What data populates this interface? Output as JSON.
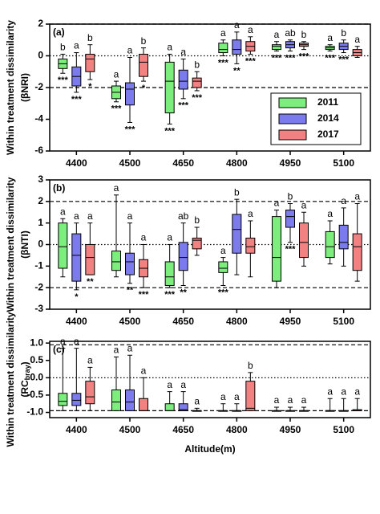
{
  "chart_data": [
    {
      "type": "box",
      "panel_label": "(a)",
      "y_label": "Within treatment dissimilarity",
      "y_sublabel": "(βNRI)",
      "categories": [
        "4400",
        "4500",
        "4650",
        "4800",
        "4950",
        "5100"
      ],
      "ylim": [
        -6,
        2
      ],
      "yticks": [
        -6,
        -4,
        -2,
        0,
        2
      ],
      "hlines": [
        {
          "value": 2,
          "style": "dashed"
        },
        {
          "value": -2,
          "style": "dashed"
        },
        {
          "value": 0,
          "style": "dotted"
        }
      ],
      "legend": "lower right",
      "series": [
        {
          "name": "2011",
          "color": "#7ded7d",
          "values": [
            [
              -1.1,
              -0.8,
              -0.5,
              -0.2,
              0.1
            ],
            [
              -2.9,
              -2.7,
              -2.3,
              -1.9,
              -1.6
            ],
            [
              -4.3,
              -3.6,
              -1.6,
              -0.4,
              0.1
            ],
            [
              0.0,
              0.2,
              0.4,
              0.8,
              1.0
            ],
            [
              0.3,
              0.4,
              0.6,
              0.7,
              0.9
            ],
            [
              0.3,
              0.4,
              0.5,
              0.6,
              0.7
            ]
          ],
          "letters": [
            "b",
            "a",
            "a",
            "a",
            "a",
            "a"
          ],
          "stars": [
            "***",
            "***",
            "***",
            "***",
            "***",
            "***"
          ]
        },
        {
          "name": "2014",
          "color": "#7b7bee",
          "values": [
            [
              -2.3,
              -1.9,
              -1.3,
              -0.7,
              0.2
            ],
            [
              -4.2,
              -3.1,
              -2.1,
              -1.7,
              -0.1
            ],
            [
              -2.7,
              -2.1,
              -1.6,
              -0.9,
              -0.2
            ],
            [
              -0.5,
              0.1,
              0.4,
              1.0,
              1.5
            ],
            [
              0.3,
              0.5,
              0.7,
              0.9,
              1.0
            ],
            [
              0.2,
              0.4,
              0.6,
              0.8,
              1.0
            ]
          ],
          "letters": [
            "a",
            "a",
            "a",
            "a",
            "ab",
            "b"
          ],
          "stars": [
            "***",
            "***",
            "***",
            "**",
            "***",
            "***"
          ]
        },
        {
          "name": "2017",
          "color": "#f28282",
          "values": [
            [
              -1.5,
              -1.0,
              -0.2,
              0.1,
              0.7
            ],
            [
              -1.6,
              -1.3,
              -0.4,
              0.1,
              0.5
            ],
            [
              -2.2,
              -2.0,
              -1.6,
              -1.4,
              -1.0
            ],
            [
              0.1,
              0.3,
              0.6,
              0.9,
              1.2
            ],
            [
              0.4,
              0.6,
              0.7,
              0.8,
              0.9
            ],
            [
              -0.1,
              0.0,
              0.2,
              0.4,
              0.6
            ]
          ],
          "letters": [
            "b",
            "b",
            "b",
            "a",
            "b",
            "a"
          ],
          "stars": [
            "*",
            "*",
            "***",
            "***",
            "***",
            null
          ]
        }
      ]
    },
    {
      "type": "box",
      "panel_label": "(b)",
      "y_label": "Within treatment dissimilarity",
      "y_sublabel": "(βNTI)",
      "categories": [
        "4400",
        "4500",
        "4650",
        "4800",
        "4950",
        "5100"
      ],
      "ylim": [
        -3,
        3
      ],
      "yticks": [
        -3,
        -2,
        -1,
        0,
        1,
        2,
        3
      ],
      "hlines": [
        {
          "value": 2,
          "style": "dashed"
        },
        {
          "value": -2,
          "style": "dashed"
        },
        {
          "value": 0,
          "style": "dotted"
        }
      ],
      "series": [
        {
          "color": "#7ded7d",
          "values": [
            [
              -1.5,
              -1.1,
              -0.1,
              1.0,
              1.2
            ],
            [
              -1.5,
              -1.2,
              -0.8,
              -0.3,
              2.3
            ],
            [
              -2.0,
              -1.9,
              -1.5,
              -0.8,
              0.0
            ],
            [
              -1.9,
              -1.3,
              -1.1,
              -0.8,
              -0.6
            ],
            [
              -2.0,
              -1.7,
              -0.6,
              1.3,
              1.6
            ],
            [
              -0.9,
              -0.6,
              -0.1,
              0.6,
              1.1
            ]
          ],
          "letters": [
            "a",
            "a",
            "a",
            "a",
            "a",
            "a"
          ],
          "stars": [
            null,
            null,
            "***",
            "***",
            null,
            null
          ]
        },
        {
          "color": "#7b7bee",
          "values": [
            [
              -2.1,
              -1.7,
              -0.5,
              0.5,
              1.0
            ],
            [
              -1.8,
              -1.4,
              -0.8,
              -0.4,
              1.0
            ],
            [
              -1.9,
              -1.2,
              -0.6,
              0.1,
              1.0
            ],
            [
              -1.4,
              -0.4,
              0.7,
              1.4,
              2.1
            ],
            [
              0.1,
              0.8,
              1.3,
              1.6,
              1.9
            ],
            [
              -1.0,
              -0.2,
              0.1,
              0.9,
              1.7
            ]
          ],
          "letters": [
            "a",
            "a",
            "ab",
            "b",
            "b",
            "a"
          ],
          "stars": [
            "*",
            "**",
            "**",
            null,
            "***",
            null
          ]
        },
        {
          "color": "#f28282",
          "values": [
            [
              -1.4,
              -1.4,
              -0.6,
              0.0,
              1.0
            ],
            [
              -2.0,
              -1.5,
              -1.1,
              -0.7,
              0.0
            ],
            [
              -0.5,
              -0.2,
              0.2,
              0.3,
              0.8
            ],
            [
              -1.5,
              -0.4,
              -0.1,
              0.3,
              1.1
            ],
            [
              -1.0,
              -0.6,
              0.1,
              1.0,
              1.5
            ],
            [
              -1.7,
              -1.2,
              -0.1,
              0.5,
              1.9
            ]
          ],
          "letters": [
            "a",
            "a",
            "b",
            "a",
            "a",
            "a"
          ],
          "stars": [
            "**",
            "***",
            null,
            null,
            null,
            null
          ]
        }
      ]
    },
    {
      "type": "box",
      "panel_label": "(c)",
      "y_label": "Within treatment dissimilarity",
      "y_sublabel": [
        "(RC",
        "bray",
        ")"
      ],
      "categories": [
        "4400",
        "4500",
        "4650",
        "4800",
        "4950",
        "5100"
      ],
      "x_label": "Altitude(m)",
      "ylim": [
        -1.15,
        1.05
      ],
      "yticks": [
        {
          "value": -1,
          "label": "-1.0"
        },
        {
          "value": -0.5,
          "label": "-0.5"
        },
        {
          "value": 0,
          "label": "0.0"
        },
        {
          "value": 0.5,
          "label": "0.5"
        },
        {
          "value": 1,
          "label": "1.0"
        }
      ],
      "hlines": [
        {
          "value": 0.95,
          "style": "dashed"
        },
        {
          "value": -0.95,
          "style": "dashed"
        },
        {
          "value": 0,
          "style": "dotted"
        }
      ],
      "series": [
        {
          "color": "#7ded7d",
          "values": [
            [
              -0.95,
              -0.8,
              -0.68,
              -0.45,
              0.85
            ],
            [
              -0.95,
              -0.95,
              -0.7,
              -0.35,
              0.6
            ],
            [
              -0.95,
              -0.95,
              -0.95,
              -0.75,
              -0.4
            ],
            [
              -0.95,
              -0.95,
              -0.95,
              -0.95,
              -0.75
            ],
            [
              -0.95,
              -0.95,
              -0.95,
              -0.95,
              -0.85
            ],
            [
              -0.95,
              -0.95,
              -0.95,
              -0.95,
              -0.6
            ]
          ],
          "letters": [
            "a",
            "a",
            "a",
            "a",
            "a",
            "a"
          ]
        },
        {
          "color": "#7b7bee",
          "values": [
            [
              -0.95,
              -0.8,
              -0.65,
              -0.45,
              0.85
            ],
            [
              -0.95,
              -0.95,
              -0.7,
              -0.35,
              0.65
            ],
            [
              -0.95,
              -0.95,
              -0.92,
              -0.75,
              -0.4
            ],
            [
              -0.95,
              -0.95,
              -0.95,
              -0.95,
              -0.75
            ],
            [
              -0.95,
              -0.95,
              -0.95,
              -0.95,
              -0.85
            ],
            [
              -0.95,
              -0.95,
              -0.95,
              -0.95,
              -0.6
            ]
          ],
          "letters": [
            "a",
            "a",
            "a",
            "a",
            "a",
            "a"
          ]
        },
        {
          "color": "#f28282",
          "values": [
            [
              -0.95,
              -0.75,
              -0.55,
              -0.1,
              0.3
            ],
            [
              -0.95,
              -0.95,
              -0.95,
              -0.6,
              0.0
            ],
            [
              -0.95,
              -0.95,
              -0.95,
              -0.95,
              -0.88
            ],
            [
              -0.95,
              -0.95,
              -0.88,
              -0.1,
              0.15
            ],
            [
              -0.95,
              -0.95,
              -0.95,
              -0.95,
              -0.85
            ],
            [
              -0.95,
              -0.95,
              -0.95,
              -0.92,
              -0.6
            ]
          ],
          "letters": [
            "a",
            "a",
            "a",
            "b",
            "a",
            "a"
          ]
        }
      ]
    }
  ]
}
